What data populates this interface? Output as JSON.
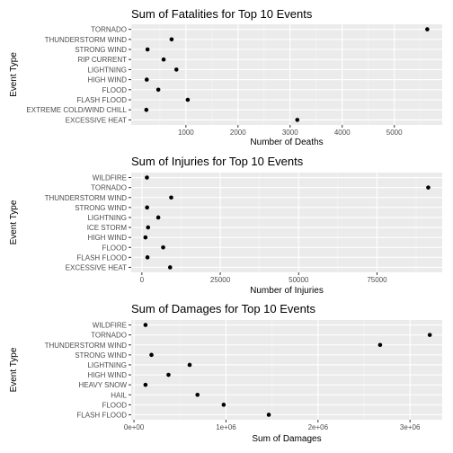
{
  "chart_data": [
    {
      "type": "scatter",
      "title": "Sum of Fatalities for Top 10 Events",
      "xlabel": "Number of Deaths",
      "ylabel": "Event Type",
      "categories": [
        "TORNADO",
        "THUNDERSTORM WIND",
        "STRONG WIND",
        "RIP CURRENT",
        "LIGHTNING",
        "HIGH WIND",
        "FLOOD",
        "FLASH FLOOD",
        "EXTREME COLD/WIND CHILL",
        "EXCESSIVE HEAT"
      ],
      "values": [
        5633,
        725,
        263,
        572,
        817,
        248,
        470,
        1035,
        240,
        3138
      ],
      "xticks": [
        1000,
        2000,
        3000,
        4000,
        5000
      ],
      "xtick_labels": [
        "1000",
        "2000",
        "3000",
        "4000",
        "5000"
      ],
      "xlim": [
        -50,
        5920
      ],
      "grid": true
    },
    {
      "type": "scatter",
      "title": "Sum of Injuries for Top 10 Events",
      "xlabel": "Number of Injuries",
      "ylabel": "Event Type",
      "categories": [
        "WILDFIRE",
        "TORNADO",
        "THUNDERSTORM WIND",
        "STRONG WIND",
        "LIGHTNING",
        "ICE STORM",
        "HIGH WIND",
        "FLOOD",
        "FLASH FLOOD",
        "EXCESSIVE HEAT"
      ],
      "values": [
        1606,
        91346,
        9353,
        1657,
        5230,
        1975,
        1137,
        6789,
        1777,
        9008
      ],
      "xticks": [
        0,
        25000,
        50000,
        75000
      ],
      "xtick_labels": [
        "0",
        "25000",
        "50000",
        "75000"
      ],
      "xlim": [
        -3400,
        95800
      ],
      "grid": true
    },
    {
      "type": "scatter",
      "title": "Sum of Damages for Top 10 Events",
      "xlabel": "Sum of Damages",
      "ylabel": "Event Type",
      "categories": [
        "WILDFIRE",
        "TORNADO",
        "THUNDERSTORM WIND",
        "STRONG WIND",
        "LIGHTNING",
        "HIGH WIND",
        "HEAVY SNOW",
        "HAIL",
        "FLOOD",
        "FLASH FLOOD"
      ],
      "values": [
        125000,
        3215000,
        2675000,
        190000,
        605000,
        375000,
        125000,
        690000,
        975000,
        1465000
      ],
      "xticks": [
        0,
        1000000,
        2000000,
        3000000
      ],
      "xtick_labels": [
        "0e+00",
        "1e+06",
        "2e+06",
        "3e+06"
      ],
      "xlim": [
        -30000,
        3350000
      ],
      "grid": true
    }
  ]
}
